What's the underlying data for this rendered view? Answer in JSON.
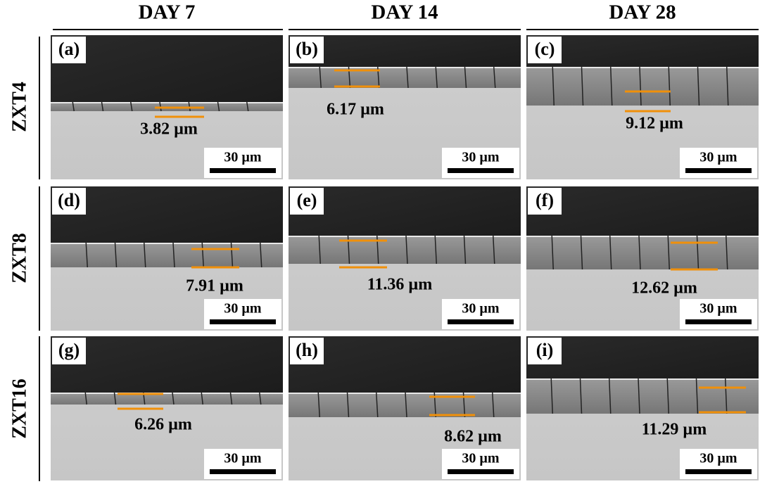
{
  "column_headers": [
    "DAY 7",
    "DAY 14",
    "DAY 28"
  ],
  "row_labels": [
    "ZXT4",
    "ZXT8",
    "ZXT16"
  ],
  "panels": [
    {
      "label": "(a)",
      "thickness": "3.82 µm",
      "scale_bar": "30 µm"
    },
    {
      "label": "(b)",
      "thickness": "6.17 µm",
      "scale_bar": "30 µm"
    },
    {
      "label": "(c)",
      "thickness": "9.12 µm",
      "scale_bar": "30 µm"
    },
    {
      "label": "(d)",
      "thickness": "7.91 µm",
      "scale_bar": "30 µm"
    },
    {
      "label": "(e)",
      "thickness": "11.36 µm",
      "scale_bar": "30 µm"
    },
    {
      "label": "(f)",
      "thickness": "12.62 µm",
      "scale_bar": "30 µm"
    },
    {
      "label": "(g)",
      "thickness": "6.26 µm",
      "scale_bar": "30 µm"
    },
    {
      "label": "(h)",
      "thickness": "8.62 µm",
      "scale_bar": "30 µm"
    },
    {
      "label": "(i)",
      "thickness": "11.29 µm",
      "scale_bar": "30 µm"
    }
  ]
}
